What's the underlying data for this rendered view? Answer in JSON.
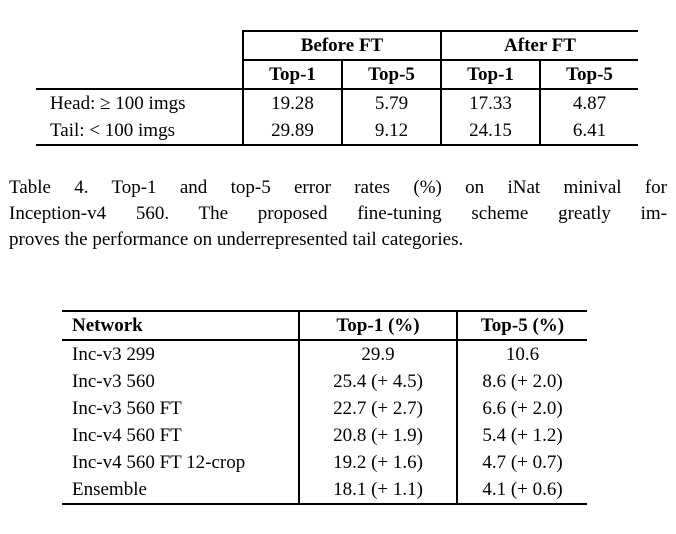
{
  "table1": {
    "col_groups": [
      "Before FT",
      "After FT"
    ],
    "sub_headers": [
      "Top-1",
      "Top-5",
      "Top-1",
      "Top-5"
    ],
    "rows": [
      {
        "label": "Head: ≥ 100 imgs",
        "values": [
          "19.28",
          "5.79",
          "17.33",
          "4.87"
        ]
      },
      {
        "label": "Tail: < 100 imgs",
        "values": [
          "29.89",
          "9.12",
          "24.15",
          "6.41"
        ]
      }
    ]
  },
  "caption": {
    "lines": [
      "Table 4. Top-1 and top-5 error rates (%) on iNat minival for",
      "Inception-v4 560. The proposed fine-tuning scheme greatly im-",
      "proves the performance on underrepresented tail categories."
    ],
    "full_text": "Table 4. Top-1 and top-5 error rates (%) on iNat minival for Inception-v4 560. The proposed fine-tuning scheme greatly improves the performance on underrepresented tail categories."
  },
  "table2": {
    "headers": [
      "Network",
      "Top-1 (%)",
      "Top-5 (%)"
    ],
    "rows": [
      {
        "network": "Inc-v3 299",
        "top1": "29.9",
        "top5": "10.6"
      },
      {
        "network": "Inc-v3 560",
        "top1": "25.4 (+ 4.5)",
        "top5": "8.6 (+ 2.0)"
      },
      {
        "network": "Inc-v3 560 FT",
        "top1": "22.7 (+ 2.7)",
        "top5": "6.6 (+ 2.0)"
      },
      {
        "network": "Inc-v4 560 FT",
        "top1": "20.8 (+ 1.9)",
        "top5": "5.4 (+ 1.2)"
      },
      {
        "network": "Inc-v4 560 FT 12-crop",
        "top1": "19.2 (+ 1.6)",
        "top5": "4.7 (+ 0.7)"
      },
      {
        "network": "Ensemble",
        "top1": "18.1 (+ 1.1)",
        "top5": "4.1 (+ 0.6)"
      }
    ]
  }
}
